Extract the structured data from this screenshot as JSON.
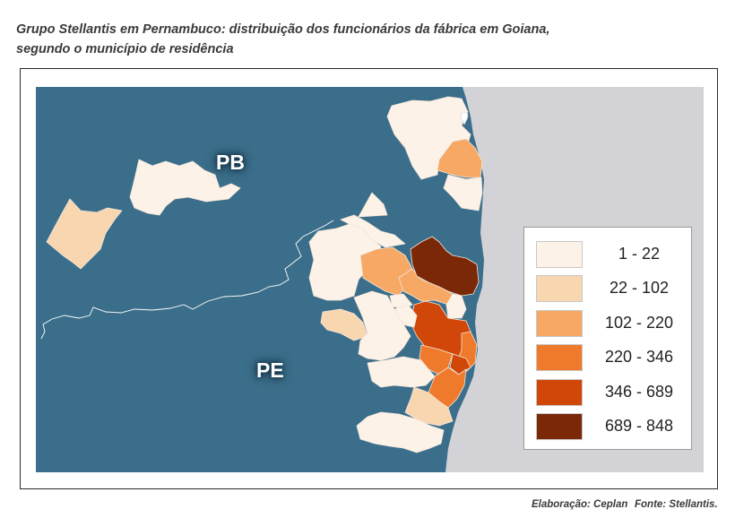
{
  "title": {
    "line1": "Grupo Stellantis em Pernambuco: distribuição dos funcionários da fábrica em Goiana,",
    "line2": "segundo o município de residência"
  },
  "map": {
    "labels": {
      "pb": "PB",
      "pe": "PE"
    },
    "colors": {
      "land": "#3b6e8a",
      "ocean": "#d3d3d7",
      "border": "#ffffff",
      "region_stroke": "#f3e6da"
    },
    "regions": [
      1,
      0,
      0,
      2,
      0,
      0,
      0,
      0,
      2,
      5,
      2,
      0,
      4,
      3,
      0,
      0,
      1,
      0,
      3,
      4,
      0,
      3,
      1,
      0
    ]
  },
  "legend": {
    "items": [
      {
        "label": "1 - 22",
        "color": "#fdf2e8"
      },
      {
        "label": "22 - 102",
        "color": "#f8d6b0"
      },
      {
        "label": "102 - 220",
        "color": "#f6a864"
      },
      {
        "label": "220 - 346",
        "color": "#ef7a2b"
      },
      {
        "label": "346 - 689",
        "color": "#d1470a"
      },
      {
        "label": "689 - 848",
        "color": "#7b2808"
      }
    ]
  },
  "footer": {
    "elaboracao": "Elaboração: Ceplan",
    "fonte": "Fonte: Stellantis."
  }
}
